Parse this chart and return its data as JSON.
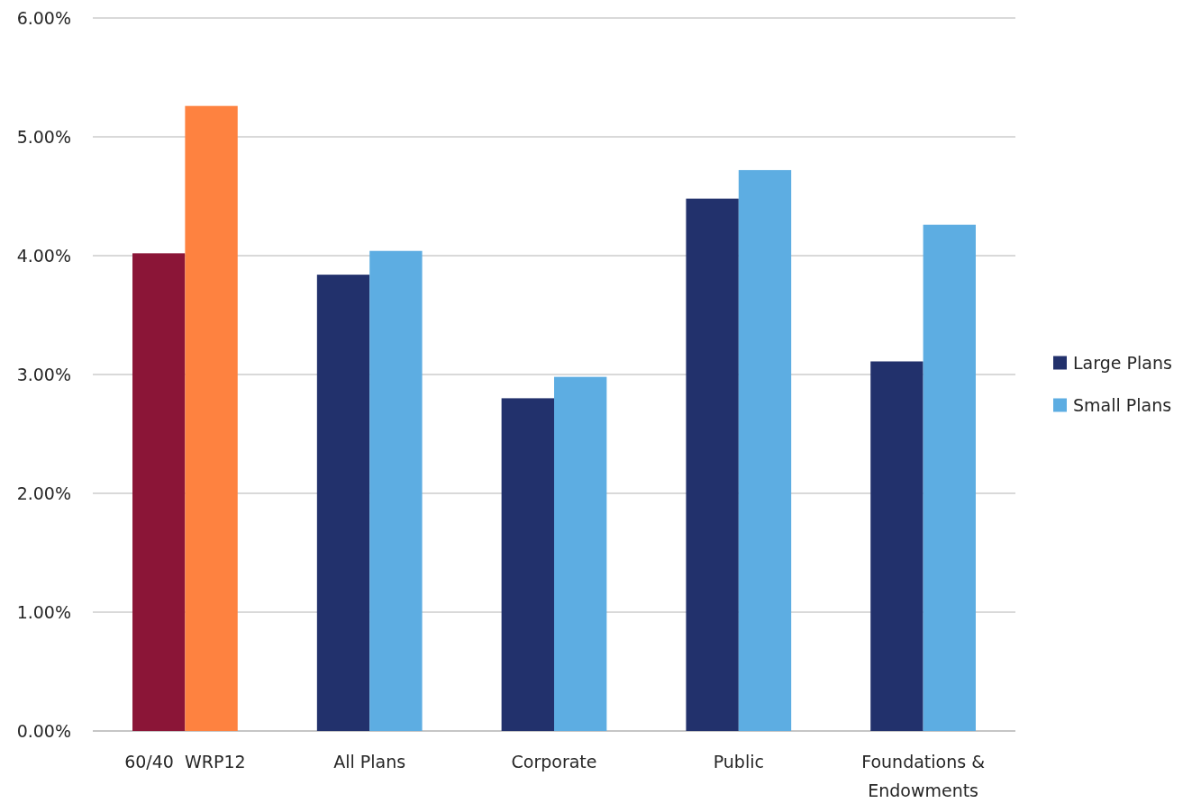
{
  "chart_data": {
    "type": "bar",
    "categories": [
      "60/40  WRP12",
      "All Plans",
      "Corporate",
      "Public",
      "Foundations & Endowments"
    ],
    "series": [
      {
        "name": "Large Plans",
        "color": "#22316c",
        "colors": [
          "#8b1537",
          "#22316c",
          "#22316c",
          "#22316c",
          "#22316c"
        ],
        "values": [
          4.02,
          3.84,
          2.8,
          4.48,
          3.11
        ]
      },
      {
        "name": "Small Plans",
        "color": "#5dade2",
        "colors": [
          "#fe8240",
          "#5dade2",
          "#5dade2",
          "#5dade2",
          "#5dade2"
        ],
        "values": [
          5.26,
          4.04,
          2.98,
          4.72,
          4.26
        ]
      }
    ],
    "ylim": [
      0,
      6
    ],
    "yticks": [
      {
        "value": 0,
        "label": "0.00%"
      },
      {
        "value": 1,
        "label": "1.00%"
      },
      {
        "value": 2,
        "label": "2.00%"
      },
      {
        "value": 3,
        "label": "3.00%"
      },
      {
        "value": 4,
        "label": "4.00%"
      },
      {
        "value": 5,
        "label": "5.00%"
      },
      {
        "value": 6,
        "label": "6.00%"
      }
    ],
    "grid": "y",
    "legend": "right"
  }
}
